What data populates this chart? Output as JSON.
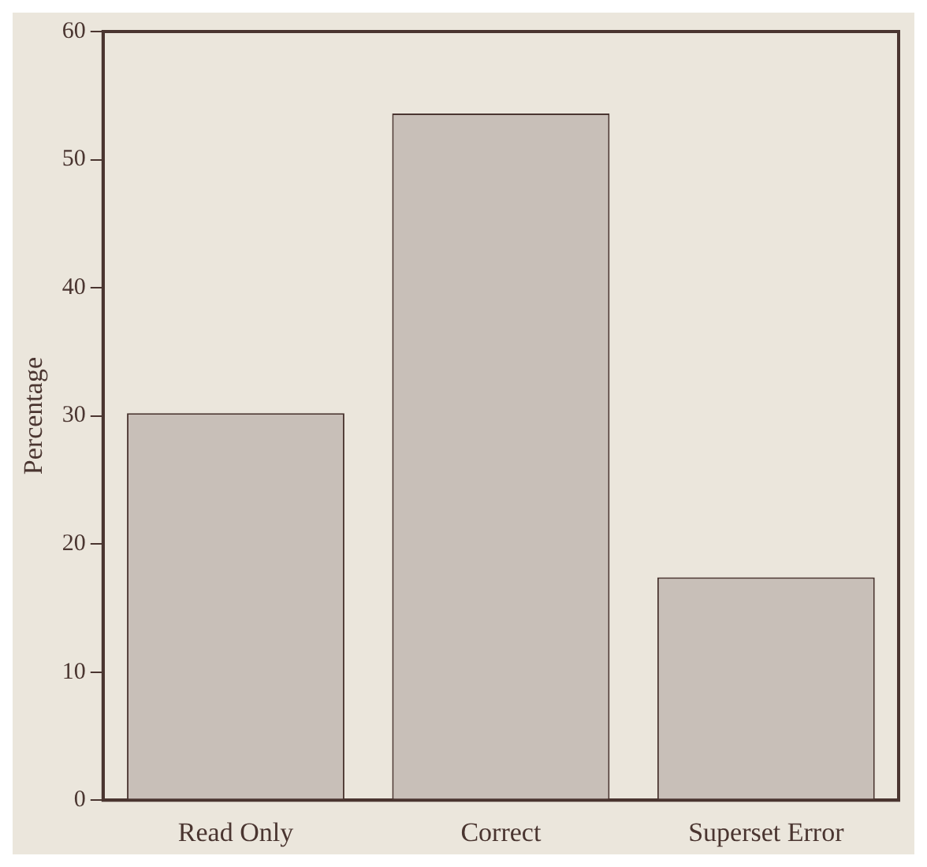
{
  "chart_data": {
    "type": "bar",
    "ylabel": "Percentage",
    "categories": [
      "Read Only",
      "Correct",
      "Superset Error"
    ],
    "values": [
      30.2,
      53.6,
      17.4
    ],
    "color": "#c8bfb8",
    "ylim": [
      0,
      60
    ],
    "yticks": [
      0,
      10,
      20,
      30,
      40,
      50,
      60
    ],
    "grid": false,
    "legend": false
  }
}
